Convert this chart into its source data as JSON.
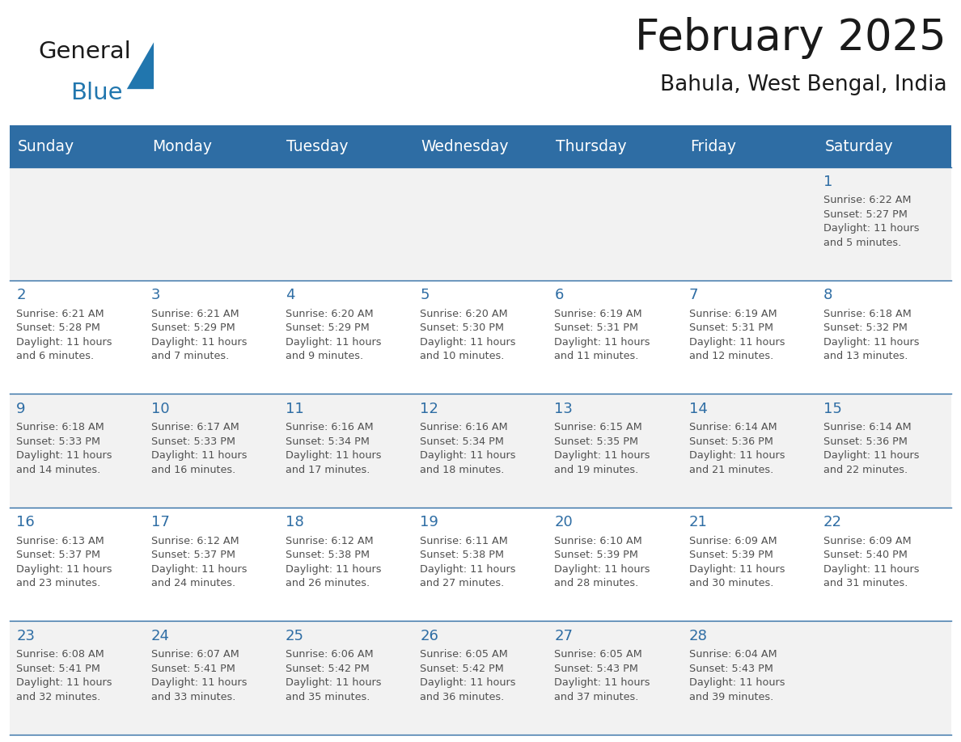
{
  "title": "February 2025",
  "subtitle": "Bahula, West Bengal, India",
  "days_of_week": [
    "Sunday",
    "Monday",
    "Tuesday",
    "Wednesday",
    "Thursday",
    "Friday",
    "Saturday"
  ],
  "header_bg": "#2E6DA4",
  "header_text": "#FFFFFF",
  "cell_bg_light": "#F2F2F2",
  "cell_bg_white": "#FFFFFF",
  "border_color": "#2E6DA4",
  "day_num_color": "#2E6DA4",
  "cell_text_color": "#505050",
  "title_color": "#1a1a1a",
  "subtitle_color": "#1a1a1a",
  "logo_general_color": "#1a1a1a",
  "logo_blue_color": "#2176AE",
  "days": [
    {
      "date": 1,
      "col": 6,
      "row": 0,
      "sunrise": "6:22 AM",
      "sunset": "5:27 PM",
      "daylight_hours": 11,
      "daylight_minutes": 5
    },
    {
      "date": 2,
      "col": 0,
      "row": 1,
      "sunrise": "6:21 AM",
      "sunset": "5:28 PM",
      "daylight_hours": 11,
      "daylight_minutes": 6
    },
    {
      "date": 3,
      "col": 1,
      "row": 1,
      "sunrise": "6:21 AM",
      "sunset": "5:29 PM",
      "daylight_hours": 11,
      "daylight_minutes": 7
    },
    {
      "date": 4,
      "col": 2,
      "row": 1,
      "sunrise": "6:20 AM",
      "sunset": "5:29 PM",
      "daylight_hours": 11,
      "daylight_minutes": 9
    },
    {
      "date": 5,
      "col": 3,
      "row": 1,
      "sunrise": "6:20 AM",
      "sunset": "5:30 PM",
      "daylight_hours": 11,
      "daylight_minutes": 10
    },
    {
      "date": 6,
      "col": 4,
      "row": 1,
      "sunrise": "6:19 AM",
      "sunset": "5:31 PM",
      "daylight_hours": 11,
      "daylight_minutes": 11
    },
    {
      "date": 7,
      "col": 5,
      "row": 1,
      "sunrise": "6:19 AM",
      "sunset": "5:31 PM",
      "daylight_hours": 11,
      "daylight_minutes": 12
    },
    {
      "date": 8,
      "col": 6,
      "row": 1,
      "sunrise": "6:18 AM",
      "sunset": "5:32 PM",
      "daylight_hours": 11,
      "daylight_minutes": 13
    },
    {
      "date": 9,
      "col": 0,
      "row": 2,
      "sunrise": "6:18 AM",
      "sunset": "5:33 PM",
      "daylight_hours": 11,
      "daylight_minutes": 14
    },
    {
      "date": 10,
      "col": 1,
      "row": 2,
      "sunrise": "6:17 AM",
      "sunset": "5:33 PM",
      "daylight_hours": 11,
      "daylight_minutes": 16
    },
    {
      "date": 11,
      "col": 2,
      "row": 2,
      "sunrise": "6:16 AM",
      "sunset": "5:34 PM",
      "daylight_hours": 11,
      "daylight_minutes": 17
    },
    {
      "date": 12,
      "col": 3,
      "row": 2,
      "sunrise": "6:16 AM",
      "sunset": "5:34 PM",
      "daylight_hours": 11,
      "daylight_minutes": 18
    },
    {
      "date": 13,
      "col": 4,
      "row": 2,
      "sunrise": "6:15 AM",
      "sunset": "5:35 PM",
      "daylight_hours": 11,
      "daylight_minutes": 19
    },
    {
      "date": 14,
      "col": 5,
      "row": 2,
      "sunrise": "6:14 AM",
      "sunset": "5:36 PM",
      "daylight_hours": 11,
      "daylight_minutes": 21
    },
    {
      "date": 15,
      "col": 6,
      "row": 2,
      "sunrise": "6:14 AM",
      "sunset": "5:36 PM",
      "daylight_hours": 11,
      "daylight_minutes": 22
    },
    {
      "date": 16,
      "col": 0,
      "row": 3,
      "sunrise": "6:13 AM",
      "sunset": "5:37 PM",
      "daylight_hours": 11,
      "daylight_minutes": 23
    },
    {
      "date": 17,
      "col": 1,
      "row": 3,
      "sunrise": "6:12 AM",
      "sunset": "5:37 PM",
      "daylight_hours": 11,
      "daylight_minutes": 24
    },
    {
      "date": 18,
      "col": 2,
      "row": 3,
      "sunrise": "6:12 AM",
      "sunset": "5:38 PM",
      "daylight_hours": 11,
      "daylight_minutes": 26
    },
    {
      "date": 19,
      "col": 3,
      "row": 3,
      "sunrise": "6:11 AM",
      "sunset": "5:38 PM",
      "daylight_hours": 11,
      "daylight_minutes": 27
    },
    {
      "date": 20,
      "col": 4,
      "row": 3,
      "sunrise": "6:10 AM",
      "sunset": "5:39 PM",
      "daylight_hours": 11,
      "daylight_minutes": 28
    },
    {
      "date": 21,
      "col": 5,
      "row": 3,
      "sunrise": "6:09 AM",
      "sunset": "5:39 PM",
      "daylight_hours": 11,
      "daylight_minutes": 30
    },
    {
      "date": 22,
      "col": 6,
      "row": 3,
      "sunrise": "6:09 AM",
      "sunset": "5:40 PM",
      "daylight_hours": 11,
      "daylight_minutes": 31
    },
    {
      "date": 23,
      "col": 0,
      "row": 4,
      "sunrise": "6:08 AM",
      "sunset": "5:41 PM",
      "daylight_hours": 11,
      "daylight_minutes": 32
    },
    {
      "date": 24,
      "col": 1,
      "row": 4,
      "sunrise": "6:07 AM",
      "sunset": "5:41 PM",
      "daylight_hours": 11,
      "daylight_minutes": 33
    },
    {
      "date": 25,
      "col": 2,
      "row": 4,
      "sunrise": "6:06 AM",
      "sunset": "5:42 PM",
      "daylight_hours": 11,
      "daylight_minutes": 35
    },
    {
      "date": 26,
      "col": 3,
      "row": 4,
      "sunrise": "6:05 AM",
      "sunset": "5:42 PM",
      "daylight_hours": 11,
      "daylight_minutes": 36
    },
    {
      "date": 27,
      "col": 4,
      "row": 4,
      "sunrise": "6:05 AM",
      "sunset": "5:43 PM",
      "daylight_hours": 11,
      "daylight_minutes": 37
    },
    {
      "date": 28,
      "col": 5,
      "row": 4,
      "sunrise": "6:04 AM",
      "sunset": "5:43 PM",
      "daylight_hours": 11,
      "daylight_minutes": 39
    }
  ],
  "num_rows": 5,
  "num_cols": 7,
  "fig_width": 11.88,
  "fig_height": 9.18
}
